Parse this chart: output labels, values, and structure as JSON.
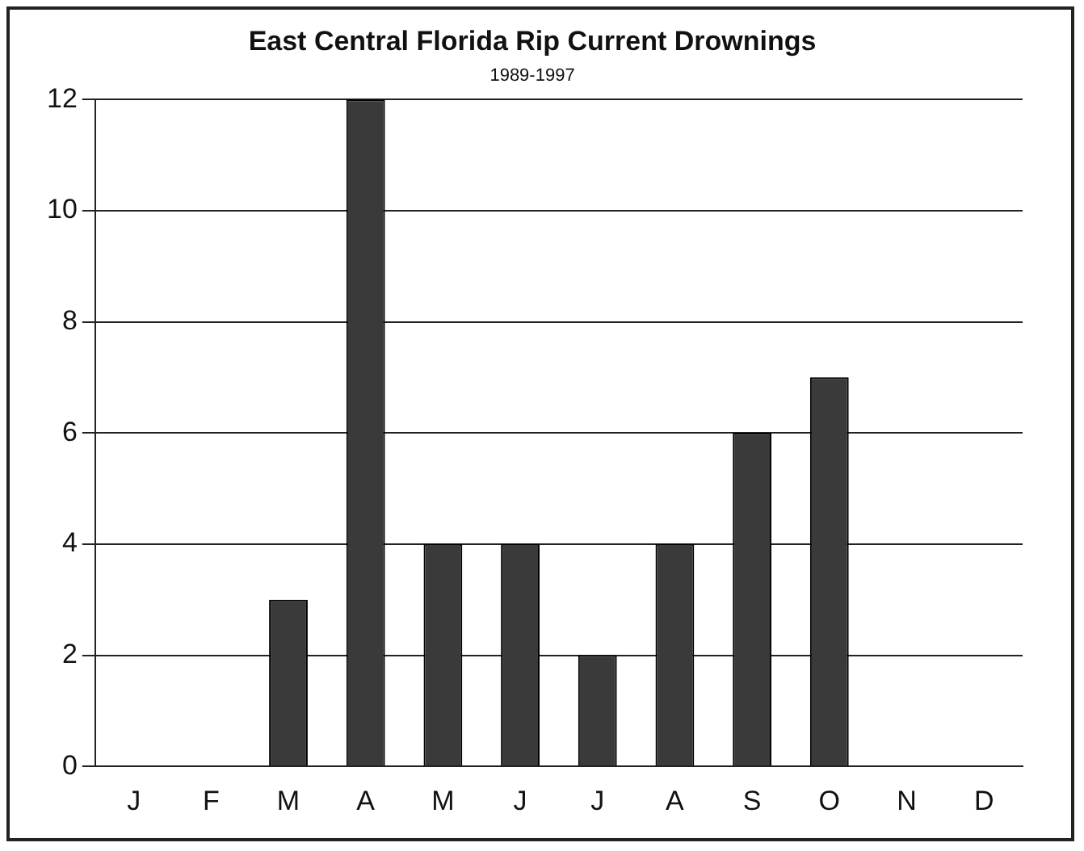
{
  "chart_data": {
    "type": "bar",
    "title": "East Central Florida Rip Current Drownings",
    "subtitle": "1989-1997",
    "categories": [
      "J",
      "F",
      "M",
      "A",
      "M",
      "J",
      "J",
      "A",
      "S",
      "O",
      "N",
      "D"
    ],
    "values": [
      0,
      0,
      3,
      12,
      4,
      4,
      2,
      4,
      6,
      7,
      0,
      0
    ],
    "color": "#3a3a3a",
    "ylim": [
      0,
      12
    ],
    "yticks": [
      0,
      2,
      4,
      6,
      8,
      10,
      12
    ],
    "grid": "y",
    "legend": false
  }
}
